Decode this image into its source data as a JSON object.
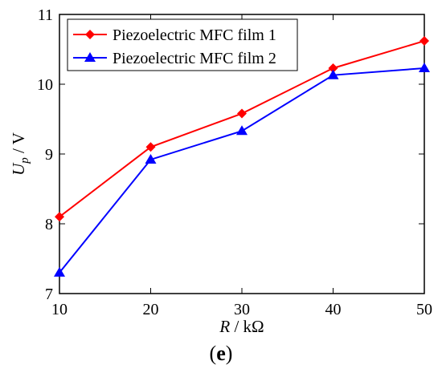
{
  "chart_data": {
    "type": "line",
    "x": [
      10,
      20,
      30,
      40,
      50
    ],
    "series": [
      {
        "name": "Piezoelectric MFC film 1",
        "values": [
          8.1,
          9.1,
          9.58,
          10.23,
          10.62
        ],
        "color": "#ff0000",
        "marker": "diamond"
      },
      {
        "name": "Piezoelectric MFC film 2",
        "values": [
          7.3,
          8.92,
          9.33,
          10.13,
          10.23
        ],
        "color": "#0000ff",
        "marker": "triangle"
      }
    ],
    "xlabel_main": "R",
    "xlabel_unit": " / kΩ",
    "ylabel_main": "U",
    "ylabel_sub": "p",
    "ylabel_unit": " / V",
    "xlim": [
      10,
      50
    ],
    "ylim": [
      7,
      11
    ],
    "xticks": [
      "10",
      "20",
      "30",
      "40",
      "50"
    ],
    "yticks": [
      "7",
      "8",
      "9",
      "10",
      "11"
    ],
    "grid": false,
    "legend_position": "top-left"
  },
  "caption": {
    "open": "(",
    "letter": "e",
    "close": ")"
  }
}
